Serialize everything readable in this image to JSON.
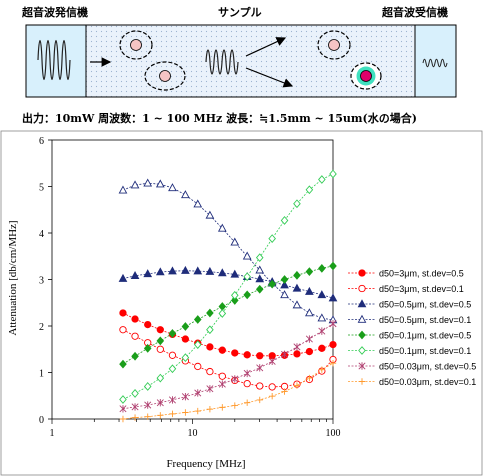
{
  "diagram": {
    "transmitter_label": "超音波発信機",
    "sample_label": "サンプル",
    "receiver_label": "超音波受信機",
    "specs": "出力：10mW  周波数：1 ~ 100 MHz   波長：≒1.5mm ~ 15um(水の場合)"
  },
  "colors": {
    "red": "#ff0000",
    "navy": "#1f2c7a",
    "green": "#1a9e1a",
    "lightgreen": "#33cc55",
    "purple": "#b04070",
    "orange": "#ff9a2e"
  },
  "chart_data": {
    "type": "line",
    "xlabel": "Frequency [MHz]",
    "ylabel": "Attenuation [db/cm/MHz]",
    "xscale": "log",
    "xlim": [
      1,
      100
    ],
    "ylim": [
      0,
      6
    ],
    "xticks": [
      "1",
      "10",
      "100"
    ],
    "yticks": [
      "0",
      "1",
      "2",
      "3",
      "4",
      "5",
      "6"
    ],
    "legend_position": "right",
    "x": [
      3.2,
      3.9,
      4.8,
      5.9,
      7.2,
      8.9,
      10.9,
      13.3,
      16.3,
      20,
      24.5,
      30.1,
      36.9,
      45.2,
      55.4,
      67.9,
      83.3,
      100
    ],
    "series": [
      {
        "name": "d50=3μm, st.dev=0.5",
        "color": "#ff0000",
        "marker": "circle",
        "filled": true,
        "values": [
          2.28,
          2.15,
          2.03,
          1.92,
          1.82,
          1.72,
          1.63,
          1.55,
          1.48,
          1.42,
          1.38,
          1.36,
          1.36,
          1.37,
          1.4,
          1.45,
          1.52,
          1.6
        ]
      },
      {
        "name": "d50=3μm, st.dev=0.1",
        "color": "#ff0000",
        "marker": "circle",
        "filled": false,
        "values": [
          1.92,
          1.78,
          1.64,
          1.5,
          1.37,
          1.25,
          1.13,
          1.02,
          0.92,
          0.83,
          0.76,
          0.71,
          0.69,
          0.7,
          0.75,
          0.85,
          1.03,
          1.28
        ]
      },
      {
        "name": "d50=0.5μm, st.dev=0.5",
        "color": "#1f2c7a",
        "marker": "triangle",
        "filled": true,
        "values": [
          3.02,
          3.08,
          3.12,
          3.16,
          3.18,
          3.19,
          3.18,
          3.17,
          3.14,
          3.11,
          3.06,
          3.01,
          2.95,
          2.88,
          2.81,
          2.74,
          2.67,
          2.6
        ]
      },
      {
        "name": "d50=0.5μm, st.dev=0.1",
        "color": "#1f2c7a",
        "marker": "triangle",
        "filled": false,
        "values": [
          4.92,
          5.03,
          5.07,
          5.05,
          4.97,
          4.82,
          4.62,
          4.38,
          4.1,
          3.8,
          3.5,
          3.2,
          2.92,
          2.67,
          2.45,
          2.28,
          2.17,
          2.13
        ]
      },
      {
        "name": "d50=0.1μm, st.dev=0.5",
        "color": "#1a9e1a",
        "marker": "diamond",
        "filled": true,
        "values": [
          1.18,
          1.35,
          1.52,
          1.68,
          1.84,
          1.99,
          2.14,
          2.28,
          2.42,
          2.55,
          2.67,
          2.79,
          2.9,
          3.0,
          3.09,
          3.17,
          3.24,
          3.29
        ]
      },
      {
        "name": "d50=0.1μm, st.dev=0.1",
        "color": "#33cc55",
        "marker": "diamond",
        "filled": false,
        "values": [
          0.42,
          0.55,
          0.7,
          0.88,
          1.08,
          1.32,
          1.6,
          1.92,
          2.27,
          2.66,
          3.06,
          3.47,
          3.88,
          4.27,
          4.63,
          4.93,
          5.15,
          5.27
        ]
      },
      {
        "name": "d50=0.03μm, st.dev=0.5",
        "color": "#b04070",
        "marker": "star",
        "filled": true,
        "values": [
          0.22,
          0.26,
          0.3,
          0.35,
          0.41,
          0.48,
          0.56,
          0.65,
          0.75,
          0.86,
          0.98,
          1.1,
          1.24,
          1.39,
          1.55,
          1.72,
          1.89,
          2.05
        ]
      },
      {
        "name": "d50=0.03μm, st.dev=0.1",
        "color": "#ff9a2e",
        "marker": "plus",
        "filled": true,
        "values": [
          0.0,
          0.03,
          0.05,
          0.08,
          0.11,
          0.14,
          0.17,
          0.21,
          0.25,
          0.29,
          0.35,
          0.41,
          0.49,
          0.59,
          0.72,
          0.88,
          1.06,
          1.2
        ]
      }
    ]
  }
}
